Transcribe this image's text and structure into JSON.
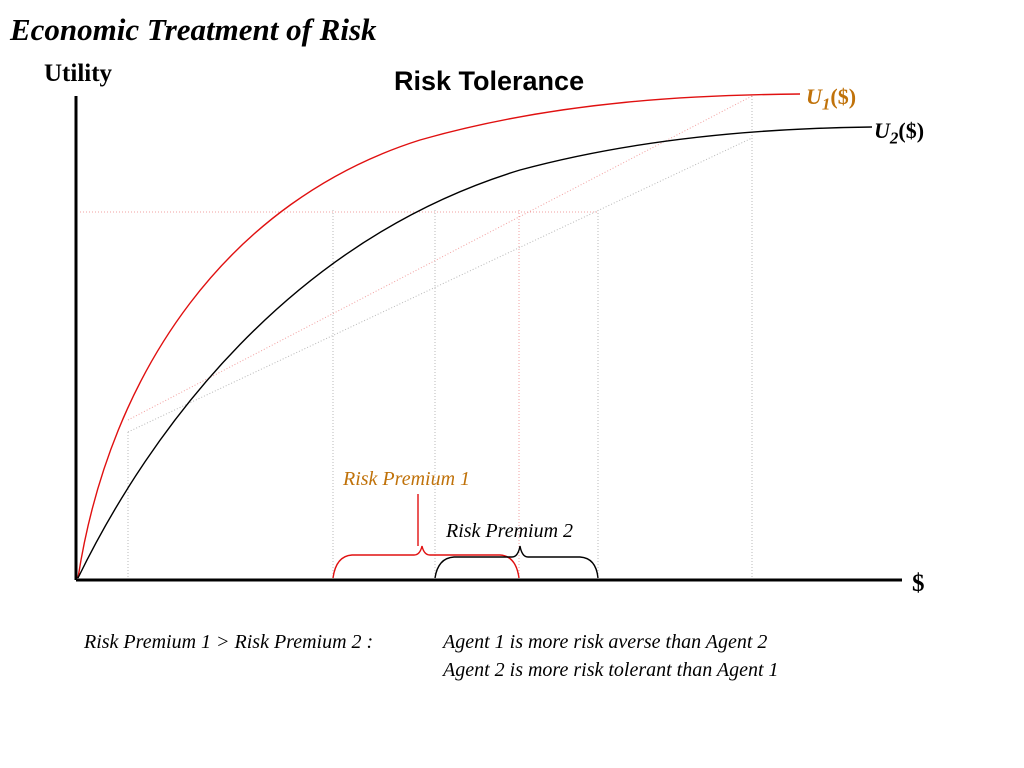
{
  "slide_title": "Economic Treatment of Risk",
  "chart_title": "Risk Tolerance",
  "axes": {
    "y_label": "Utility",
    "x_label": "$"
  },
  "curves": {
    "u1": {
      "symbol": "U",
      "subscript": "1",
      "suffix": "($)",
      "color": "#e01010"
    },
    "u2": {
      "symbol": "U",
      "subscript": "2",
      "suffix": "($)",
      "color": "#000000"
    }
  },
  "labels": {
    "risk_premium_1": "Risk Premium 1",
    "risk_premium_2": "Risk Premium 2",
    "label_color_1": "#c0720a"
  },
  "caption": {
    "comparison": "Risk Premium 1 > Risk Premium 2 :",
    "line1": "Agent 1 is more risk averse than Agent 2",
    "line2": "Agent 2 is more risk tolerant than Agent 1"
  }
}
